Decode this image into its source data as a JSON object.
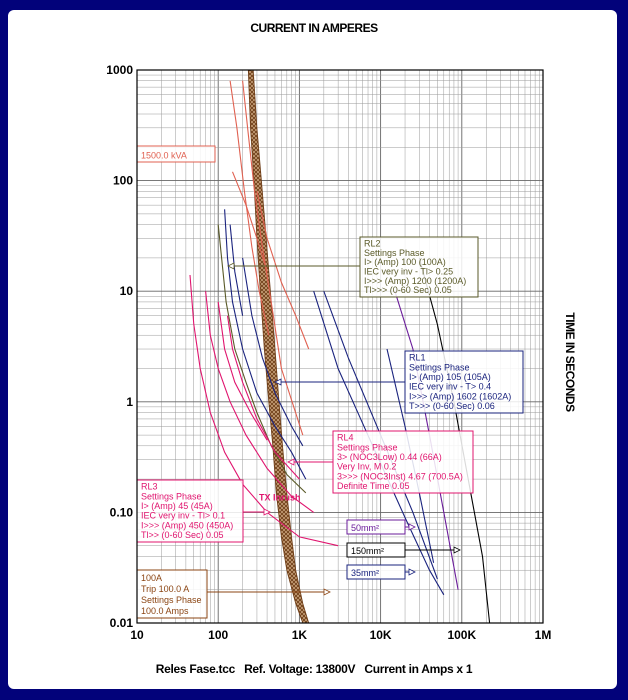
{
  "chart_data": {
    "type": "line",
    "title": "CURRENT IN AMPERES",
    "ylabel": "TIME IN SECONDS",
    "footer": "Reles Fase.tcc   Ref. Voltage: 13800V   Current in Amps x 1",
    "xscale": "log",
    "yscale": "log",
    "xlim": [
      10,
      1000000
    ],
    "ylim": [
      0.01,
      1000
    ],
    "grid": true,
    "x_tick_labels": [
      "10",
      "100",
      "1K",
      "10K",
      "100K",
      "1M"
    ],
    "y_tick_labels": [
      "1000",
      "100",
      "10",
      "1",
      "0.10",
      "0.01"
    ],
    "colors": {
      "transformer": "#e06050",
      "rl1": "#1a237e",
      "rl2": "#5a5a28",
      "rl3": "#e0146e",
      "rl4": "#e0146e",
      "inrush": "#e0146e",
      "damage": "#8b4513",
      "cable50": "#6a1b9a",
      "cable150": "#000000",
      "cable35": "#1a237e",
      "fuse": "#8b4513"
    },
    "series": [
      {
        "id": "tx_pair",
        "color": "#e06050",
        "points": [
          [
            200,
            800
          ],
          [
            230,
            300
          ],
          [
            280,
            80
          ],
          [
            350,
            25
          ],
          [
            450,
            8
          ],
          [
            600,
            2
          ],
          [
            1100,
            0.5
          ]
        ]
      },
      {
        "id": "tx_pair2",
        "color": "#e06050",
        "points": [
          [
            140,
            800
          ],
          [
            170,
            300
          ],
          [
            210,
            80
          ],
          [
            260,
            25
          ],
          [
            320,
            10
          ],
          [
            420,
            4
          ]
        ]
      },
      {
        "id": "tx_band1",
        "color": "#e06050",
        "points": [
          [
            150,
            120
          ],
          [
            220,
            60
          ],
          [
            300,
            30
          ],
          [
            400,
            15
          ]
        ]
      },
      {
        "id": "tx_band2",
        "color": "#e06050",
        "points": [
          [
            300,
            80
          ],
          [
            400,
            30
          ],
          [
            600,
            12
          ],
          [
            900,
            6
          ],
          [
            1300,
            3
          ]
        ]
      },
      {
        "id": "rl2_curve",
        "color": "#5a5a28",
        "points": [
          [
            100,
            40
          ],
          [
            110,
            20
          ],
          [
            125,
            8
          ],
          [
            160,
            3
          ],
          [
            220,
            1.5
          ],
          [
            300,
            0.8
          ],
          [
            450,
            0.4
          ],
          [
            700,
            0.22
          ],
          [
            1200,
            0.15
          ]
        ]
      },
      {
        "id": "rl1_a",
        "color": "#1a237e",
        "points": [
          [
            120,
            55
          ],
          [
            130,
            20
          ],
          [
            150,
            8
          ],
          [
            200,
            3
          ],
          [
            300,
            1.2
          ],
          [
            500,
            0.6
          ],
          [
            800,
            0.35
          ],
          [
            1200,
            0.2
          ]
        ]
      },
      {
        "id": "rl1_b",
        "color": "#1a237e",
        "points": [
          [
            200,
            20
          ],
          [
            260,
            6
          ],
          [
            350,
            2.5
          ],
          [
            500,
            1.2
          ],
          [
            800,
            0.6
          ],
          [
            1100,
            0.4
          ]
        ]
      },
      {
        "id": "rl1_c",
        "color": "#1a237e",
        "points": [
          [
            140,
            40
          ],
          [
            160,
            15
          ],
          [
            200,
            6
          ]
        ]
      },
      {
        "id": "rl3_a",
        "color": "#e0146e",
        "points": [
          [
            45,
            14
          ],
          [
            50,
            5
          ],
          [
            60,
            2
          ],
          [
            80,
            0.8
          ],
          [
            120,
            0.35
          ],
          [
            200,
            0.18
          ],
          [
            400,
            0.1
          ],
          [
            1000,
            0.06
          ],
          [
            3000,
            0.05
          ]
        ]
      },
      {
        "id": "rl3_b",
        "color": "#e0146e",
        "points": [
          [
            70,
            10
          ],
          [
            80,
            4
          ],
          [
            100,
            2
          ],
          [
            140,
            1
          ],
          [
            220,
            0.5
          ],
          [
            400,
            0.25
          ],
          [
            800,
            0.14
          ],
          [
            1500,
            0.1
          ]
        ]
      },
      {
        "id": "rl3_c",
        "color": "#e0146e",
        "points": [
          [
            100,
            8
          ],
          [
            120,
            3
          ],
          [
            160,
            1.5
          ],
          [
            250,
            0.8
          ],
          [
            400,
            0.45
          ]
        ]
      },
      {
        "id": "rl4_curve",
        "color": "#e0146e",
        "points": [
          [
            130,
            6
          ],
          [
            150,
            3
          ],
          [
            200,
            1.5
          ],
          [
            300,
            0.7
          ],
          [
            500,
            0.35
          ],
          [
            1000,
            0.2
          ]
        ]
      },
      {
        "id": "rl1_inst",
        "color": "#1a237e",
        "points": [
          [
            1500,
            10
          ],
          [
            3000,
            2
          ],
          [
            8000,
            0.4
          ],
          [
            20000,
            0.09
          ],
          [
            40000,
            0.03
          ],
          [
            60000,
            0.018
          ]
        ]
      },
      {
        "id": "rl1_inst2",
        "color": "#1a237e",
        "points": [
          [
            2000,
            10
          ],
          [
            4000,
            2.5
          ],
          [
            10000,
            0.5
          ],
          [
            25000,
            0.1
          ],
          [
            50000,
            0.025
          ]
        ]
      },
      {
        "id": "cable50",
        "color": "#6a1b9a",
        "points": [
          [
            15000,
            10
          ],
          [
            25000,
            3
          ],
          [
            40000,
            0.5
          ],
          [
            60000,
            0.1
          ],
          [
            90000,
            0.02
          ]
        ]
      },
      {
        "id": "cable150",
        "color": "#000000",
        "points": [
          [
            30000,
            20
          ],
          [
            50000,
            5
          ],
          [
            80000,
            1
          ],
          [
            120000,
            0.2
          ],
          [
            180000,
            0.04
          ],
          [
            220000,
            0.01
          ]
        ]
      },
      {
        "id": "cable35",
        "color": "#1a237e",
        "points": [
          [
            12000,
            3
          ],
          [
            20000,
            0.6
          ],
          [
            30000,
            0.15
          ],
          [
            45000,
            0.035
          ]
        ]
      }
    ],
    "annotations": [
      {
        "id": "tx_box",
        "color": "#e06050",
        "lines": [
          "1500.0 kVA"
        ]
      },
      {
        "id": "rl2_box",
        "color": "#5a5a28",
        "lines": [
          "RL2",
          "Settings  Phase",
          "I> (Amp) 100 (100A)",
          "IEC very inv - Tl> 0.25",
          "I>>> (Amp) 1200 (1200A)",
          "Tl>>> (0-60 Sec) 0.05"
        ]
      },
      {
        "id": "rl1_box",
        "color": "#1a237e",
        "lines": [
          "RL1",
          "Settings  Phase",
          "I> (Amp) 105 (105A)",
          "IEC very inv - T> 0.4",
          "I>>> (Amp) 1602 (1602A)",
          "T>>> (0-60 Sec) 0.06"
        ]
      },
      {
        "id": "rl4_box",
        "color": "#e0146e",
        "lines": [
          "RL4",
          "Settings  Phase",
          "3> (NOC3Low) 0.44 (66A)",
          "Very Inv, M 0.2",
          "3>>> (NOC3Inst) 4.67 (700.5A)",
          "Definite Time 0.05"
        ]
      },
      {
        "id": "rl3_box",
        "color": "#e0146e",
        "lines": [
          "RL3",
          "Settings  Phase",
          "I> (Amp) 45 (45A)",
          "IEC very inv - Tl> 0.1",
          "I>>> (Amp) 450 (450A)",
          "Tl>> (0-60 Sec) 0.05"
        ]
      },
      {
        "id": "fuse_box",
        "color": "#8b4513",
        "lines": [
          "100A",
          "Trip  100.0 A",
          "Settings  Phase",
          "100.0 Amps"
        ]
      },
      {
        "id": "c50_box",
        "color": "#6a1b9a",
        "lines": [
          "50mm²"
        ]
      },
      {
        "id": "c150_box",
        "color": "#000000",
        "lines": [
          "150mm²"
        ]
      },
      {
        "id": "c35_box",
        "color": "#1a237e",
        "lines": [
          "35mm²"
        ]
      },
      {
        "id": "inrush_label",
        "color": "#e0146e",
        "lines": [
          "TX Inrush"
        ]
      }
    ]
  }
}
